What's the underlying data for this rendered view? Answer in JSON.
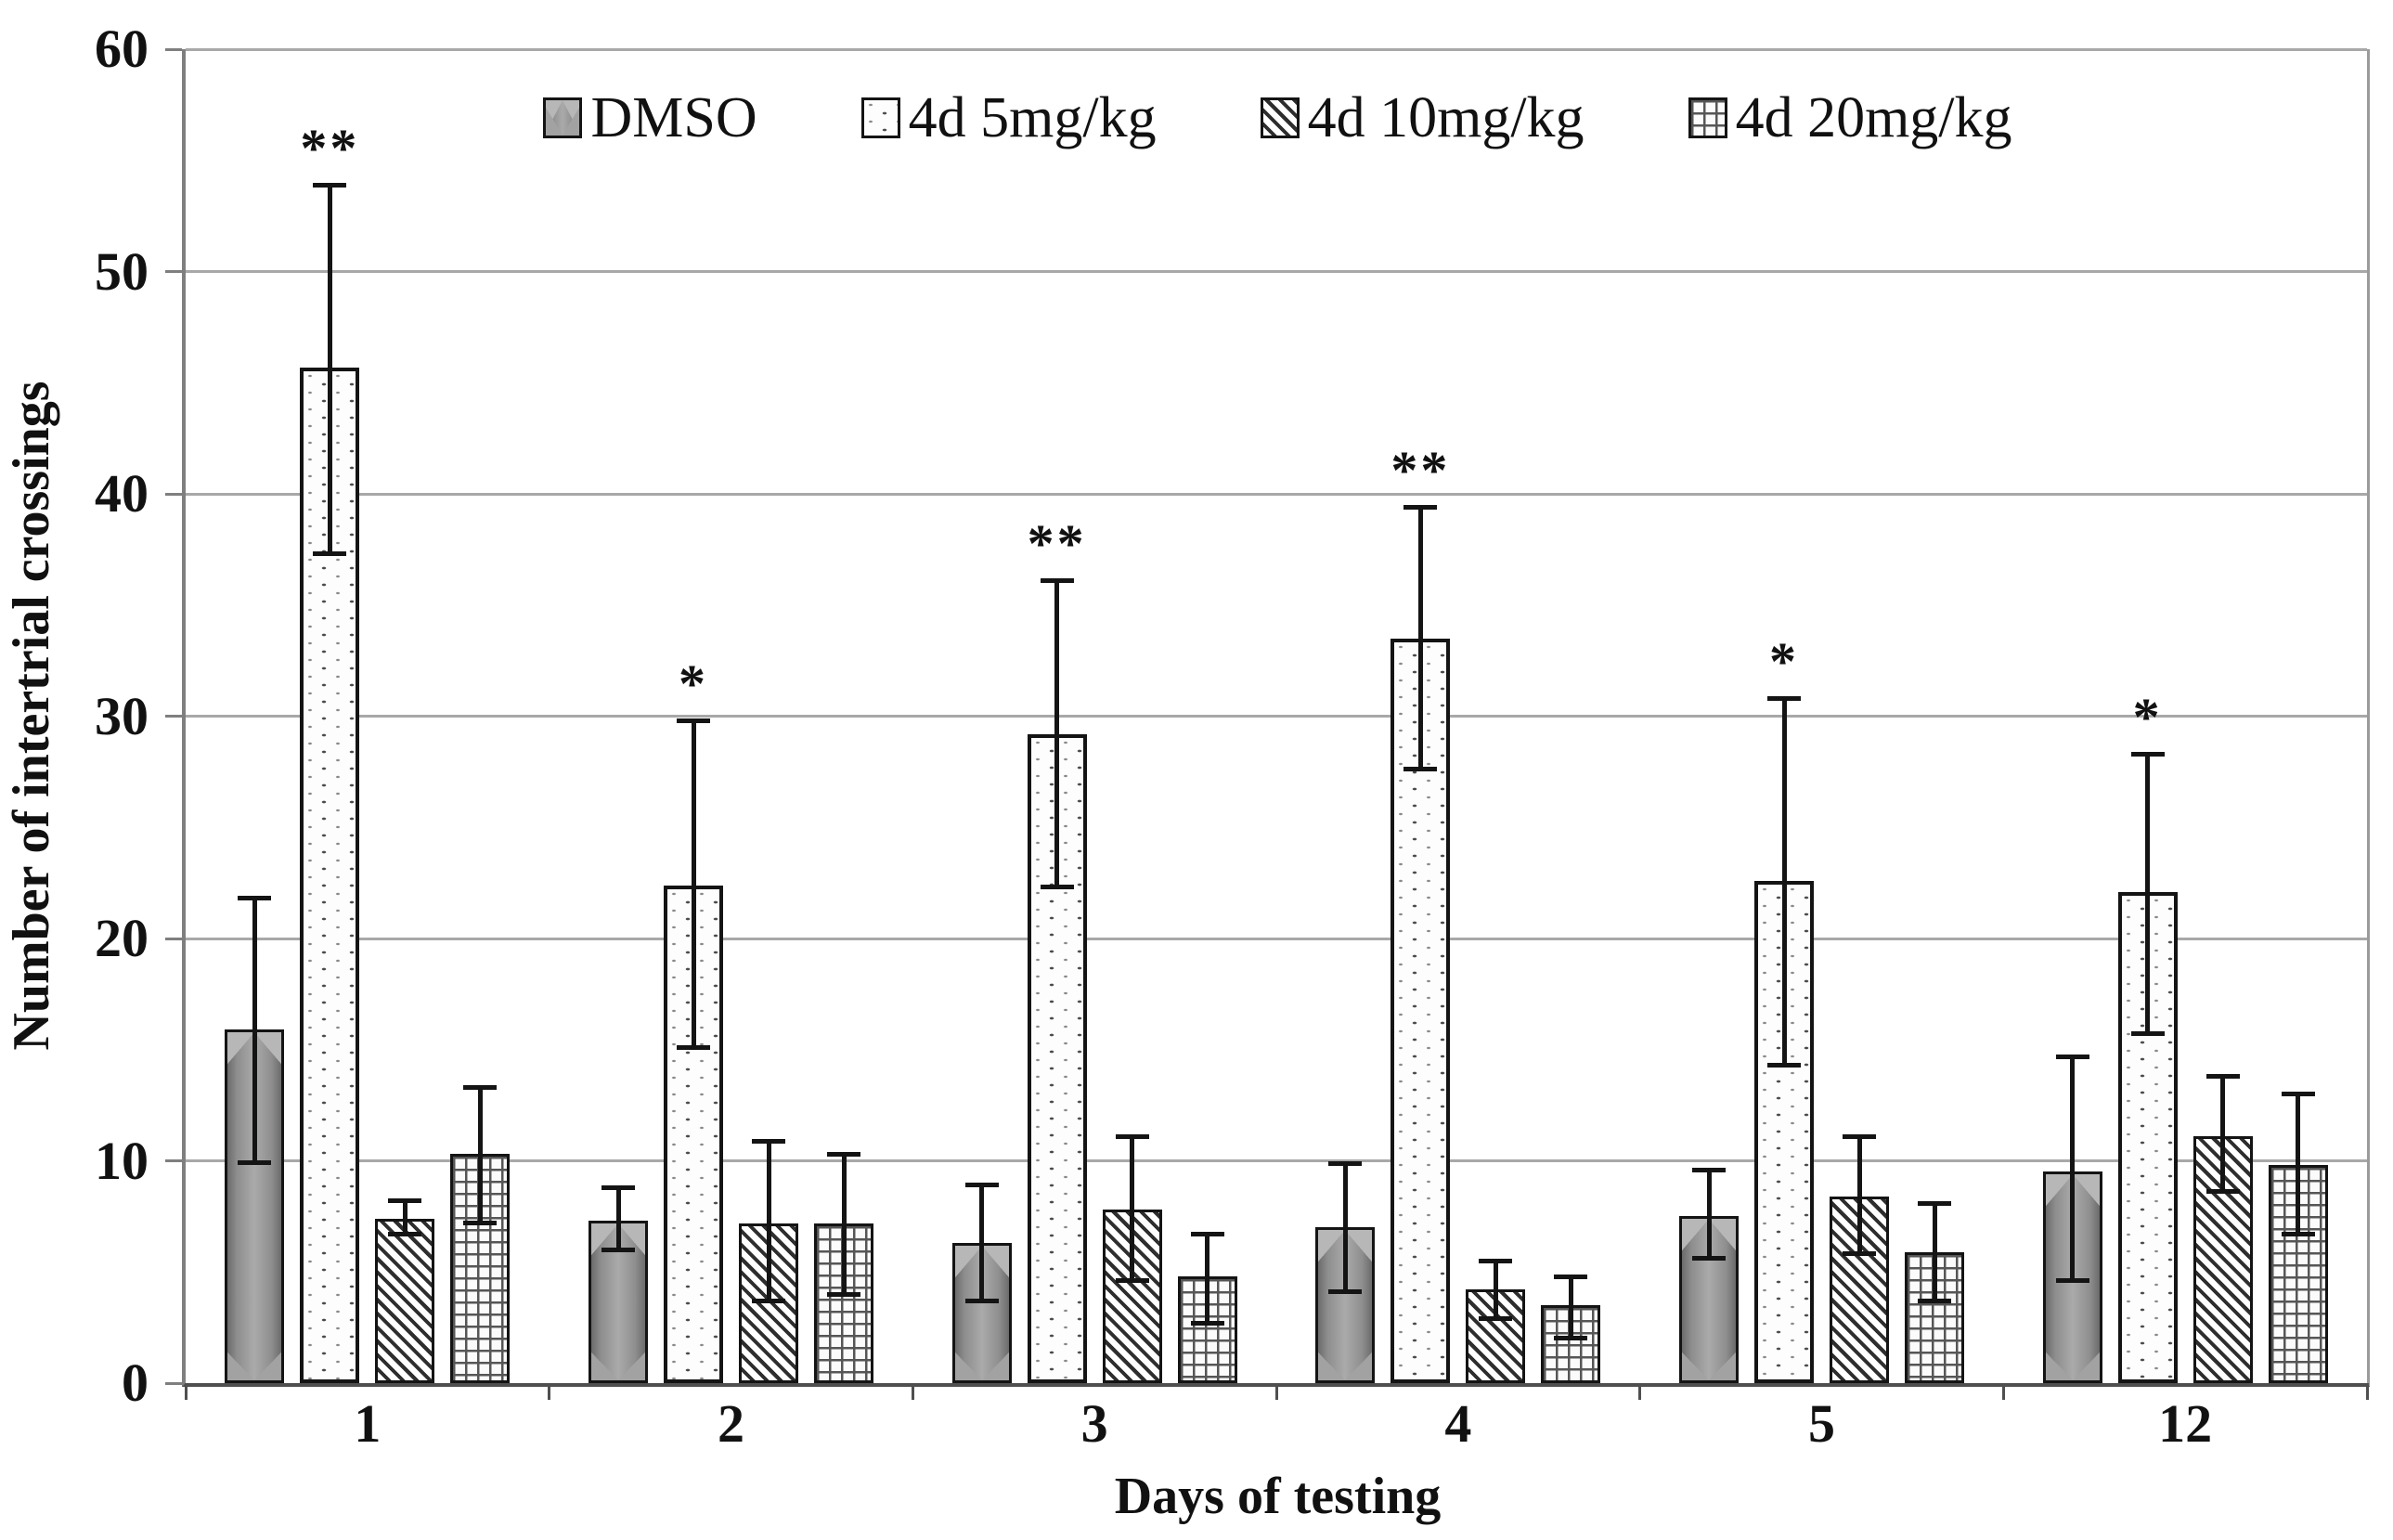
{
  "chart_data": {
    "type": "bar",
    "title": "",
    "xlabel": "Days of testing",
    "ylabel": "Number of intertrial crossings",
    "ylim": [
      0,
      60
    ],
    "yticks": [
      0,
      10,
      20,
      30,
      40,
      50,
      60
    ],
    "grid": true,
    "legend_position": "top-center-inside",
    "categories": [
      "1",
      "2",
      "3",
      "4",
      "5",
      "12"
    ],
    "series": [
      {
        "name": "DMSO",
        "pattern": "solid-gray-bevel",
        "values": [
          15.9,
          7.3,
          6.3,
          7.0,
          7.5,
          9.5
        ],
        "err_high": [
          21.9,
          8.9,
          9.0,
          10.0,
          9.7,
          14.8
        ],
        "err_low": [
          9.8,
          5.9,
          3.6,
          4.0,
          5.5,
          4.5
        ]
      },
      {
        "name": "4d 5mg/kg",
        "pattern": "dotted",
        "values": [
          45.7,
          22.4,
          29.2,
          33.5,
          22.6,
          22.1
        ],
        "err_high": [
          54.0,
          29.9,
          36.2,
          39.5,
          30.9,
          28.4
        ],
        "err_low": [
          37.2,
          15.0,
          22.2,
          27.5,
          14.2,
          15.6
        ]
      },
      {
        "name": "4d 10mg/kg",
        "pattern": "diagonal-hatch",
        "values": [
          7.4,
          7.2,
          7.8,
          4.2,
          8.4,
          11.1
        ],
        "err_high": [
          8.3,
          11.0,
          11.2,
          5.6,
          11.2,
          13.9
        ],
        "err_low": [
          6.6,
          3.6,
          4.5,
          2.8,
          5.7,
          8.5
        ]
      },
      {
        "name": "4d 20mg/kg",
        "pattern": "grid-hatch",
        "values": [
          10.3,
          7.2,
          4.8,
          3.5,
          5.9,
          9.8
        ],
        "err_high": [
          13.4,
          10.4,
          6.8,
          4.9,
          8.2,
          13.1
        ],
        "err_low": [
          7.1,
          3.9,
          2.6,
          1.9,
          3.6,
          6.6
        ]
      }
    ],
    "significance": {
      "series": "4d 5mg/kg",
      "markers": [
        "**",
        "*",
        "**",
        "**",
        "*",
        "*"
      ]
    },
    "colors": {
      "gridline": "#a8a8a8",
      "axis_left": "#7f7f7f",
      "axis_bottom": "#4f4f4f",
      "plot_border_right": "#9b9b9b",
      "bar_border": "#141414",
      "error_bar": "#141414",
      "dmso_fill_mid": "#abaaaa",
      "dmso_fill_edge": "#6b6b6b",
      "hatch_ink": "#2e2e2e",
      "background": "#ffffff"
    }
  }
}
